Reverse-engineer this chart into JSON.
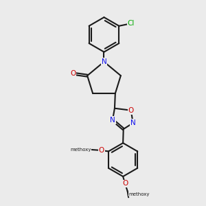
{
  "background_color": "#ebebeb",
  "bond_color": "#1a1a1a",
  "bond_width": 1.5,
  "atom_colors": {
    "N": "#1010ee",
    "O": "#cc0000",
    "Cl": "#00aa00",
    "C": "#1a1a1a"
  },
  "font_size_atom": 7.5,
  "font_size_methoxy": 6.5
}
